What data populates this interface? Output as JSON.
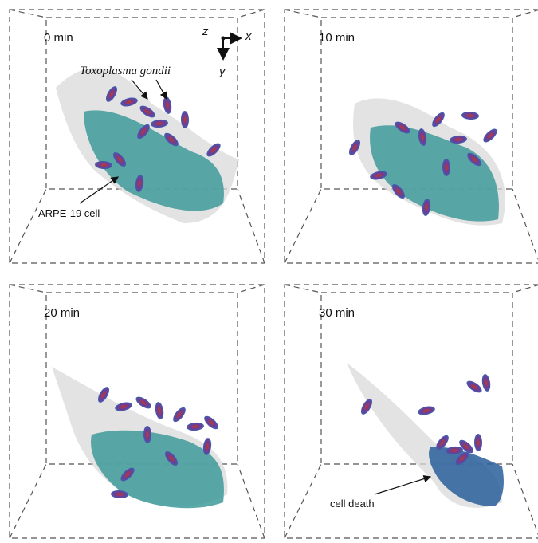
{
  "panels": [
    {
      "time": "0 min"
    },
    {
      "time": "10 min"
    },
    {
      "time": "20 min"
    },
    {
      "time": "30 min"
    }
  ],
  "annotations": {
    "parasite": "Toxoplasma gondii",
    "host_cell": "ARPE-19 cell",
    "cell_death": "cell death"
  },
  "axes": {
    "z": "z",
    "x": "x",
    "y": "y"
  }
}
